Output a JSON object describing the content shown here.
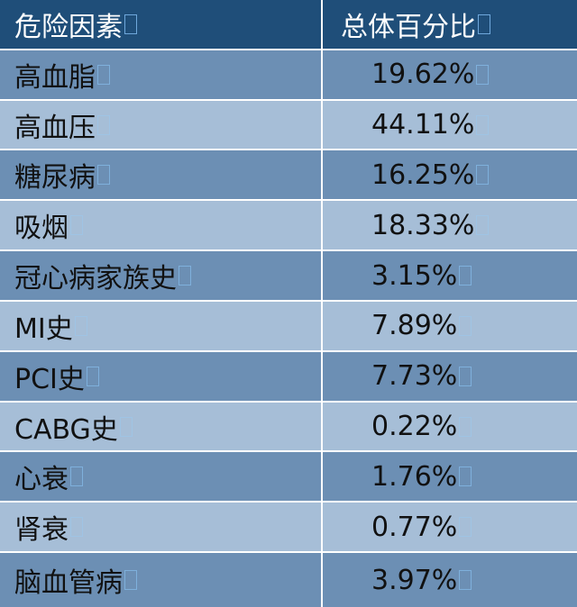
{
  "table": {
    "headers": [
      "危险因素",
      "总体百分比"
    ],
    "rows": [
      [
        "高血脂",
        "19.62%"
      ],
      [
        "高血压",
        "44.11%"
      ],
      [
        "糖尿病",
        "16.25%"
      ],
      [
        "吸烟",
        "18.33%"
      ],
      [
        "冠心病家族史",
        "3.15%"
      ],
      [
        "MI史",
        "7.89%"
      ],
      [
        "PCI史",
        "7.73%"
      ],
      [
        "CABG史",
        "0.22%"
      ],
      [
        "心衰",
        "1.76%"
      ],
      [
        "肾衰",
        "0.77%"
      ],
      [
        "脑血管病",
        "3.97%"
      ]
    ]
  },
  "colors": {
    "header_bg": "#1f4e79",
    "row_dark": "#6c8fb4",
    "row_light": "#a6bed7"
  }
}
